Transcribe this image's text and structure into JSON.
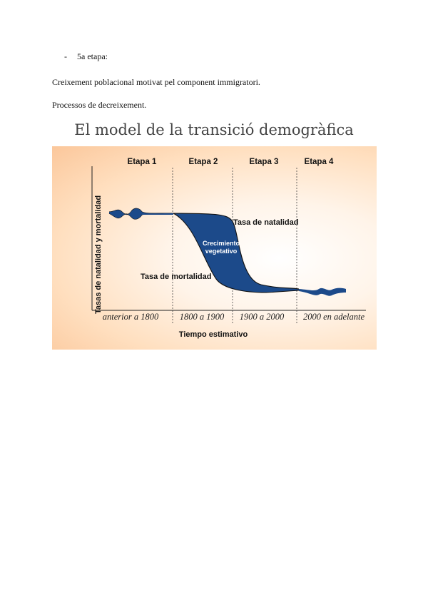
{
  "bullet": {
    "dash": "-",
    "text": "5a etapa:"
  },
  "paragraphs": [
    "Creixement poblacional motivat pel component immigratori.",
    "Processos de decreixement."
  ],
  "figure": {
    "title": "El model de la transició demogràfica",
    "stages": [
      "Etapa 1",
      "Etapa 2",
      "Etapa 3",
      "Etapa 4"
    ],
    "periods": [
      "anterior a 1800",
      "1800 a 1900",
      "1900 a 2000",
      "2000 en adelante"
    ],
    "x_label": "Tiempo estimativo",
    "y_label": "Tasas de natalidad y mortalidad",
    "birth_label": "Tasa de natalidad",
    "death_label": "Tasa de mortalidad",
    "growth_label_line1": "Crecimiento",
    "growth_label_line2": "vegetativo",
    "growth_color": "#1c4a8a"
  }
}
